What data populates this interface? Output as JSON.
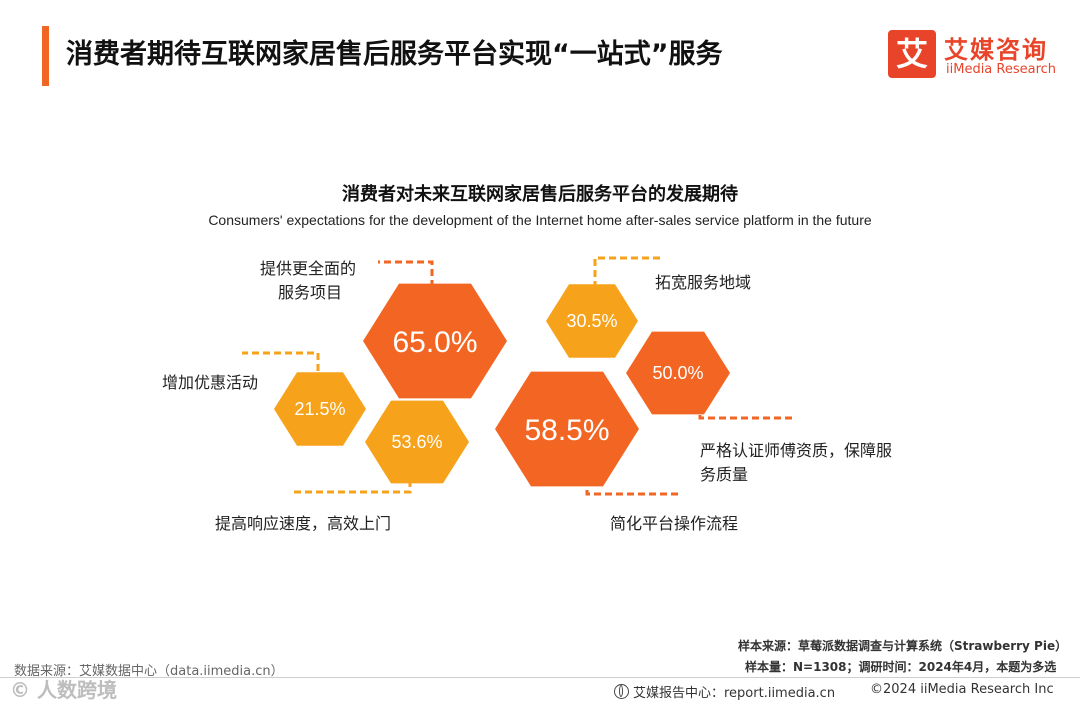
{
  "header": {
    "title": "消费者期待互联网家居售后服务平台实现“一站式”服务",
    "logo_mark": "艾",
    "logo_cn": "艾媒咨询",
    "logo_en": "iiMedia Research"
  },
  "chart_data": {
    "type": "bubble",
    "title": "消费者对未来互联网家居售后服务平台的发展期待",
    "subtitle": "Consumers' expectations for the development of the Internet home after-sales service platform in the future",
    "items": [
      {
        "label": "提供更全面的服务项目",
        "value": 65.0,
        "display": "65.0%",
        "color": "#f26522"
      },
      {
        "label": "简化平台操作流程",
        "value": 58.5,
        "display": "58.5%",
        "color": "#f26522"
      },
      {
        "label": "提高响应速度，高效上门",
        "value": 53.6,
        "display": "53.6%",
        "color": "#f7a21b"
      },
      {
        "label": "严格认证师傅资质，保障服务质量",
        "value": 50.0,
        "display": "50.0%",
        "color": "#f26522"
      },
      {
        "label": "拓宽服务地域",
        "value": 30.5,
        "display": "30.5%",
        "color": "#f7a21b"
      },
      {
        "label": "增加优惠活动",
        "value": 21.5,
        "display": "21.5%",
        "color": "#f7a21b"
      }
    ]
  },
  "footer": {
    "sample_source": "样本来源：草莓派数据调查与计算系统（Strawberry Pie）",
    "sample_size": "样本量：N=1308；调研时间：2024年4月，本题为多选",
    "data_source": "数据来源：艾媒数据中心（data.iimedia.cn）",
    "report_center": "艾媒报告中心：report.iimedia.cn",
    "copyright": "©2024  iiMedia Research  Inc",
    "watermark": "© 人数跨境"
  }
}
